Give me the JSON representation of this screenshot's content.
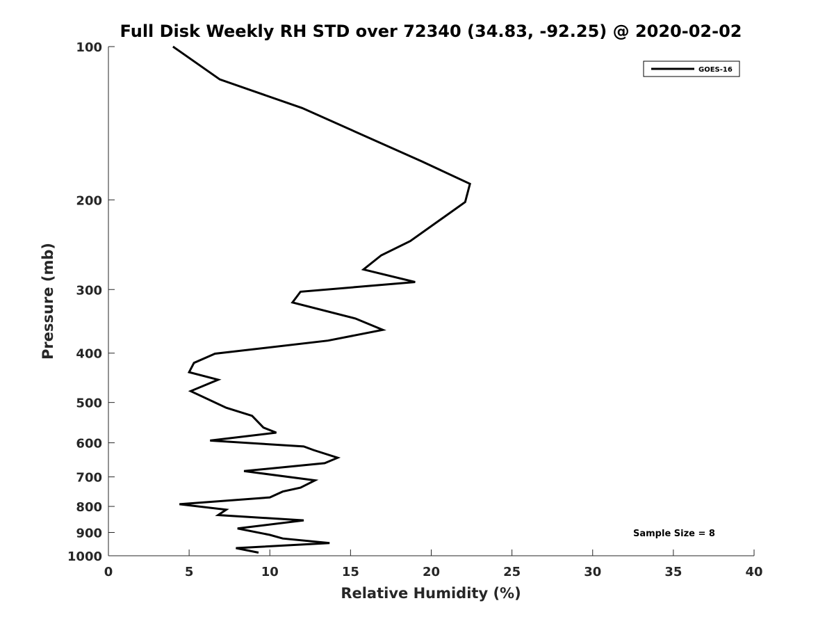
{
  "chart_data": {
    "type": "line",
    "title": "Full Disk Weekly RH STD over 72340 (34.83, -92.25) @ 2020-02-02",
    "xlabel": "Relative Humidity (%)",
    "ylabel": "Pressure (mb)",
    "xlim": [
      0,
      40
    ],
    "ylim": [
      100,
      1000
    ],
    "y_scale": "log",
    "y_reversed": true,
    "grid": false,
    "xticks": [
      "0",
      "5",
      "10",
      "15",
      "20",
      "25",
      "30",
      "35",
      "40"
    ],
    "xtick_values": [
      0,
      5,
      10,
      15,
      20,
      25,
      30,
      35,
      40
    ],
    "yticks": [
      "100",
      "200",
      "300",
      "400",
      "500",
      "600",
      "700",
      "800",
      "900",
      "1000"
    ],
    "ytick_values": [
      100,
      200,
      300,
      400,
      500,
      600,
      700,
      800,
      900,
      1000
    ],
    "legend_position": "top-right",
    "annotation": "Sample Size = 8",
    "series": [
      {
        "name": "GOES-16",
        "color": "#000000",
        "x": [
          4.0,
          6.9,
          12.0,
          19.4,
          22.4,
          22.1,
          18.7,
          16.9,
          15.8,
          19.0,
          11.9,
          11.4,
          15.3,
          17.0,
          13.6,
          6.6,
          5.3,
          5.0,
          6.8,
          5.1,
          7.3,
          8.9,
          9.6,
          10.4,
          6.3,
          12.1,
          12.7,
          14.2,
          13.4,
          8.4,
          12.8,
          11.9,
          10.8,
          10.0,
          4.4,
          7.3,
          6.8,
          12.1,
          8.0,
          10.0,
          10.8,
          13.7,
          7.9,
          9.3
        ],
        "y": [
          100,
          116,
          132,
          168,
          186,
          202,
          241,
          257,
          274,
          290,
          303,
          318,
          342,
          360,
          378,
          401,
          418,
          436,
          451,
          475,
          512,
          531,
          560,
          573,
          594,
          610,
          620,
          642,
          658,
          682,
          711,
          735,
          748,
          768,
          792,
          812,
          832,
          852,
          884,
          910,
          925,
          944,
          966,
          986
        ]
      }
    ]
  }
}
